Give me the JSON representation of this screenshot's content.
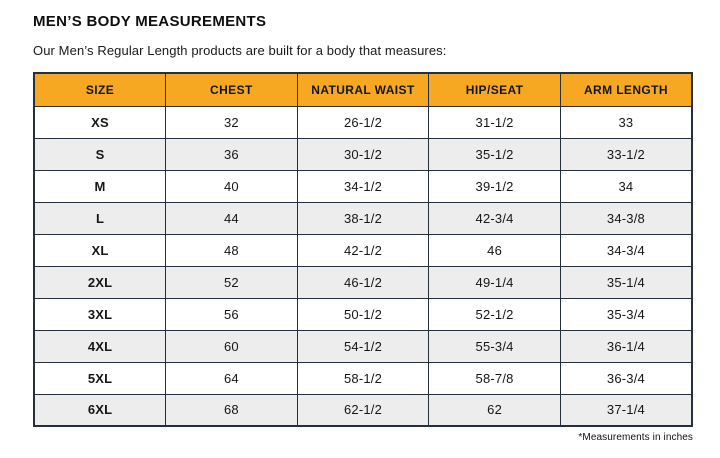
{
  "page": {
    "title": "MEN’S BODY MEASUREMENTS",
    "subtitle": "Our Men’s Regular Length products are built for a body that measures:",
    "footnote": "*Measurements in inches"
  },
  "colors": {
    "header_bg": "#f7a823",
    "header_text": "#14161a",
    "border": "#26303c",
    "alt_row_bg": "#ededed",
    "row_bg": "#ffffff"
  },
  "chart_data": {
    "type": "table",
    "title": "MEN’S BODY MEASUREMENTS",
    "columns": [
      "SIZE",
      "CHEST",
      "NATURAL WAIST",
      "HIP/SEAT",
      "ARM LENGTH"
    ],
    "rows": [
      [
        "XS",
        "32",
        "26-1/2",
        "31-1/2",
        "33"
      ],
      [
        "S",
        "36",
        "30-1/2",
        "35-1/2",
        "33-1/2"
      ],
      [
        "M",
        "40",
        "34-1/2",
        "39-1/2",
        "34"
      ],
      [
        "L",
        "44",
        "38-1/2",
        "42-3/4",
        "34-3/8"
      ],
      [
        "XL",
        "48",
        "42-1/2",
        "46",
        "34-3/4"
      ],
      [
        "2XL",
        "52",
        "46-1/2",
        "49-1/4",
        "35-1/4"
      ],
      [
        "3XL",
        "56",
        "50-1/2",
        "52-1/2",
        "35-3/4"
      ],
      [
        "4XL",
        "60",
        "54-1/2",
        "55-3/4",
        "36-1/4"
      ],
      [
        "5XL",
        "64",
        "58-1/2",
        "58-7/8",
        "36-3/4"
      ],
      [
        "6XL",
        "68",
        "62-1/2",
        "62",
        "37-1/4"
      ]
    ],
    "units": "inches"
  }
}
